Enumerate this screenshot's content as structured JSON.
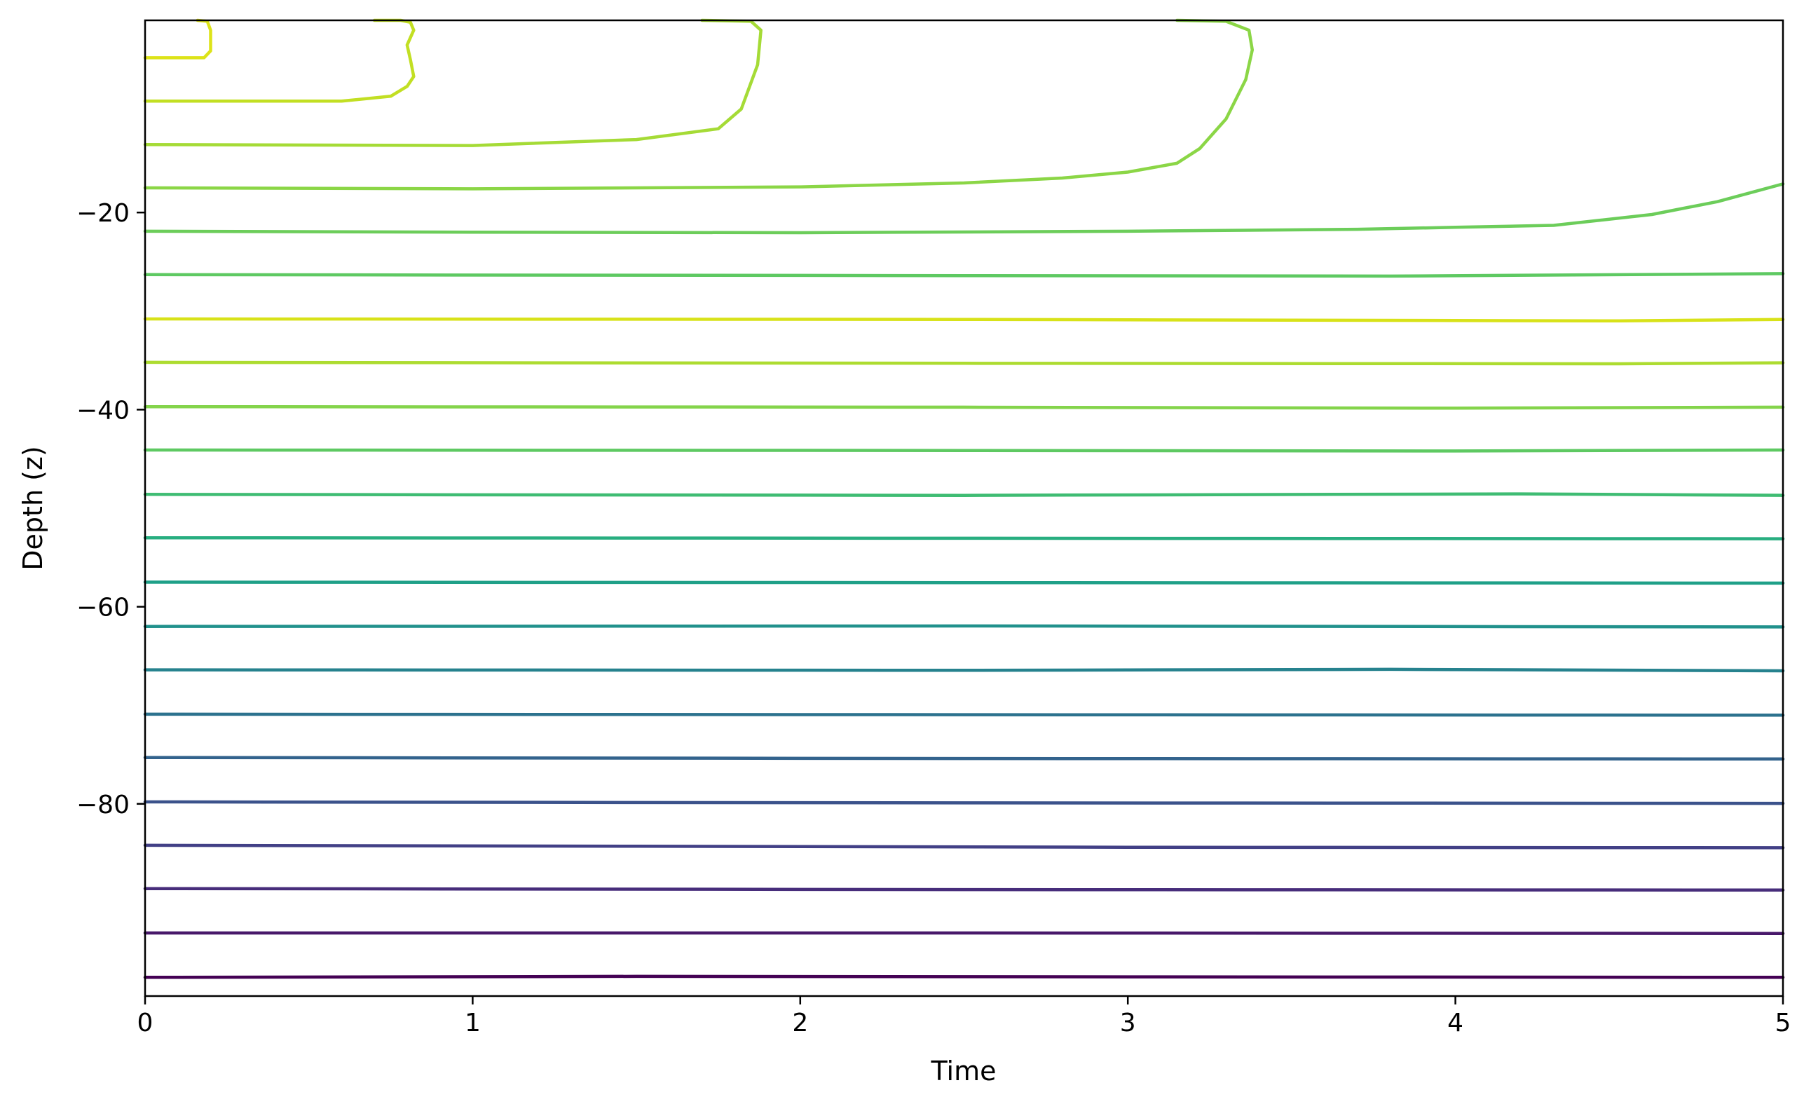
{
  "chart_data": {
    "type": "line",
    "subtype": "contour",
    "title": "",
    "xlabel": "Time",
    "ylabel": "Depth (z)",
    "xlim": [
      0,
      5
    ],
    "ylim": [
      -99.5,
      -0.5
    ],
    "xticks": [
      0,
      1,
      2,
      3,
      4,
      5
    ],
    "yticks": [
      -20,
      -40,
      -60,
      -80
    ],
    "grid": false,
    "legend": false,
    "colormap": "viridis",
    "series": [
      {
        "color": "#440154",
        "x": [
          0,
          1.5,
          3,
          5
        ],
        "y": [
          -97.6,
          -97.5,
          -97.55,
          -97.6
        ]
      },
      {
        "color": "#48186a",
        "x": [
          0,
          2.5,
          5
        ],
        "y": [
          -93.1,
          -93.1,
          -93.15
        ]
      },
      {
        "color": "#472d7b",
        "x": [
          0,
          2.5,
          5
        ],
        "y": [
          -88.6,
          -88.7,
          -88.75
        ]
      },
      {
        "color": "#424086",
        "x": [
          0,
          1.5,
          3,
          5
        ],
        "y": [
          -84.2,
          -84.3,
          -84.4,
          -84.45
        ]
      },
      {
        "color": "#3b528b",
        "x": [
          0,
          2.5,
          5
        ],
        "y": [
          -79.8,
          -79.9,
          -79.95
        ]
      },
      {
        "color": "#33638d",
        "x": [
          0,
          2.5,
          5
        ],
        "y": [
          -75.3,
          -75.4,
          -75.45
        ]
      },
      {
        "color": "#2c728e",
        "x": [
          0,
          2.5,
          5
        ],
        "y": [
          -70.9,
          -70.95,
          -71.0
        ]
      },
      {
        "color": "#26828e",
        "x": [
          0,
          2.5,
          3.8,
          5
        ],
        "y": [
          -66.4,
          -66.45,
          -66.35,
          -66.5
        ]
      },
      {
        "color": "#21918c",
        "x": [
          0,
          2.5,
          5
        ],
        "y": [
          -62.0,
          -61.95,
          -62.05
        ]
      },
      {
        "color": "#1fa088",
        "x": [
          0,
          2.5,
          5
        ],
        "y": [
          -57.5,
          -57.55,
          -57.6
        ]
      },
      {
        "color": "#28ae80",
        "x": [
          0,
          2.5,
          5
        ],
        "y": [
          -53.0,
          -53.05,
          -53.1
        ]
      },
      {
        "color": "#3fbc73",
        "x": [
          0,
          2.5,
          4.2,
          5
        ],
        "y": [
          -48.6,
          -48.7,
          -48.55,
          -48.7
        ]
      },
      {
        "color": "#5ec962",
        "x": [
          0,
          2.5,
          4.0,
          5
        ],
        "y": [
          -44.1,
          -44.15,
          -44.2,
          -44.1
        ]
      },
      {
        "color": "#84d44b",
        "x": [
          0,
          2.5,
          4.0,
          5
        ],
        "y": [
          -39.7,
          -39.75,
          -39.85,
          -39.75
        ]
      },
      {
        "color": "#addc30",
        "x": [
          0,
          2.5,
          4.5,
          5
        ],
        "y": [
          -35.2,
          -35.3,
          -35.35,
          -35.25
        ]
      },
      {
        "color": "#d8e219",
        "x": [
          0,
          2.5,
          4.5,
          5
        ],
        "y": [
          -30.8,
          -30.85,
          -31.0,
          -30.85
        ]
      },
      {
        "color": "#5ec962",
        "x": [
          0,
          2.5,
          3.8,
          5
        ],
        "y": [
          -26.3,
          -26.4,
          -26.45,
          -26.2
        ]
      },
      {
        "color": "#6ccd5a",
        "x": [
          0,
          1.0,
          2.0,
          3.0,
          3.7,
          4.0,
          4.3,
          4.6,
          4.8,
          5.0
        ],
        "y": [
          -21.9,
          -22.0,
          -22.05,
          -21.9,
          -21.7,
          -21.5,
          -21.3,
          -20.2,
          -18.9,
          -17.1
        ]
      },
      {
        "color": "#8bd646",
        "x": [
          0,
          1.0,
          2.0,
          2.5,
          2.8,
          3.0,
          3.15,
          3.22,
          3.3,
          3.36,
          3.38,
          3.37,
          3.3,
          3.15
        ],
        "y": [
          -17.5,
          -17.6,
          -17.4,
          -17.0,
          -16.5,
          -15.9,
          -15.0,
          -13.5,
          -10.5,
          -6.5,
          -3.5,
          -1.5,
          -0.6,
          -0.5
        ]
      },
      {
        "color": "#a5db36",
        "x": [
          0,
          1.0,
          1.5,
          1.75,
          1.82,
          1.87,
          1.88,
          1.85,
          1.7
        ],
        "y": [
          -13.1,
          -13.2,
          -12.6,
          -11.5,
          -9.5,
          -5.0,
          -1.5,
          -0.6,
          -0.5
        ]
      },
      {
        "color": "#c2df23",
        "x": [
          0,
          0.6,
          0.75,
          0.8,
          0.82,
          0.81,
          0.8,
          0.82,
          0.81,
          0.78,
          0.7
        ],
        "y": [
          -8.7,
          -8.7,
          -8.2,
          -7.2,
          -6.2,
          -4.5,
          -3.0,
          -1.5,
          -0.7,
          -0.5,
          -0.5
        ]
      },
      {
        "color": "#dde318",
        "x": [
          0,
          0.18,
          0.2,
          0.2,
          0.19,
          0.16
        ],
        "y": [
          -4.3,
          -4.3,
          -3.6,
          -1.5,
          -0.6,
          -0.5
        ]
      }
    ]
  }
}
